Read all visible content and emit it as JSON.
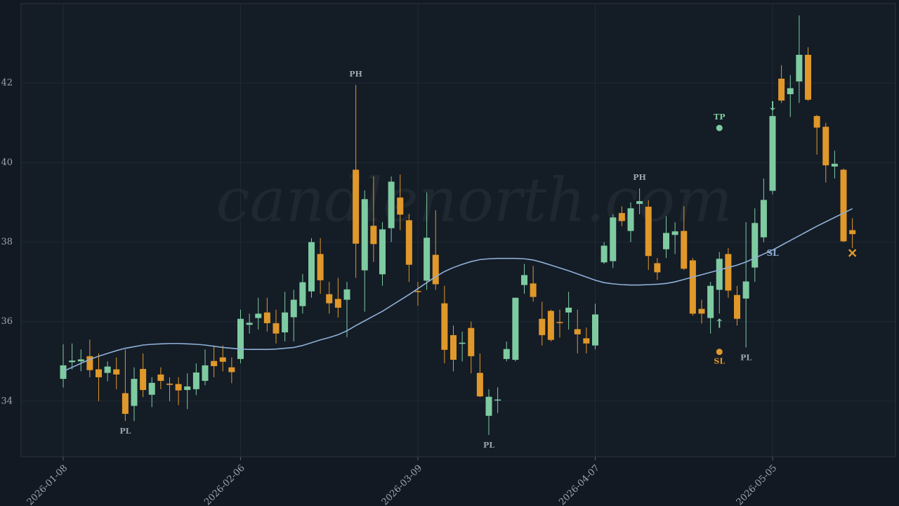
{
  "chart_data": {
    "type": "candlestick",
    "watermark": "candlenorth.com",
    "categories": [
      "2026-01-08",
      null,
      null,
      null,
      null,
      null,
      null,
      null,
      null,
      null,
      null,
      null,
      null,
      null,
      null,
      null,
      null,
      null,
      null,
      null,
      "2026-02-06",
      null,
      null,
      null,
      null,
      null,
      null,
      null,
      null,
      null,
      null,
      null,
      null,
      null,
      null,
      null,
      null,
      null,
      null,
      null,
      "2026-03-09",
      null,
      null,
      null,
      null,
      null,
      null,
      null,
      null,
      null,
      null,
      null,
      null,
      null,
      null,
      null,
      null,
      null,
      null,
      null,
      "2026-04-07",
      null,
      null,
      null,
      null,
      null,
      null,
      null,
      null,
      null,
      null,
      null,
      null,
      null,
      null,
      null,
      null,
      null,
      null,
      null,
      "2026-05-05",
      null,
      null,
      null,
      null,
      null,
      null,
      null,
      null,
      null
    ],
    "open": [
      34.56,
      34.98,
      35.0,
      35.13,
      34.8,
      34.71,
      34.8,
      34.2,
      33.88,
      34.81,
      34.16,
      34.67,
      34.44,
      34.43,
      34.28,
      34.3,
      34.51,
      35.01,
      35.1,
      34.85,
      35.06,
      35.92,
      36.09,
      36.23,
      35.96,
      35.73,
      36.11,
      36.39,
      36.76,
      37.7,
      36.69,
      36.57,
      36.55,
      39.82,
      37.29,
      38.41,
      37.19,
      38.35,
      39.12,
      38.55,
      36.77,
      37.03,
      37.68,
      36.46,
      35.66,
      35.44,
      35.84,
      34.71,
      33.63,
      34.02,
      35.06,
      35.04,
      36.92,
      36.96,
      36.07,
      36.27,
      35.99,
      36.23,
      35.81,
      35.58,
      35.4,
      37.49,
      37.52,
      38.73,
      38.28,
      38.96,
      38.89,
      37.47,
      37.82,
      38.18,
      38.28,
      37.54,
      36.32,
      36.09,
      36.8,
      37.7,
      36.67,
      36.58,
      37.36,
      38.12,
      39.29,
      42.11,
      41.72,
      42.04,
      42.71,
      41.17,
      40.9,
      39.9,
      39.82,
      38.3
    ],
    "high": [
      35.43,
      35.45,
      35.3,
      35.55,
      35.2,
      35.0,
      35.1,
      35.3,
      34.85,
      35.2,
      34.6,
      34.85,
      34.6,
      34.6,
      34.7,
      34.95,
      35.3,
      35.4,
      35.4,
      35.1,
      36.3,
      36.2,
      36.6,
      36.6,
      36.3,
      36.75,
      36.8,
      37.2,
      38.1,
      38.1,
      37.0,
      37.1,
      37.0,
      41.95,
      39.3,
      39.65,
      38.5,
      39.65,
      39.7,
      38.7,
      37.0,
      39.25,
      38.8,
      36.9,
      35.9,
      35.75,
      36.0,
      35.2,
      34.3,
      34.35,
      35.5,
      36.6,
      37.45,
      37.4,
      36.5,
      36.3,
      36.3,
      36.75,
      36.3,
      35.85,
      36.45,
      38.0,
      38.7,
      38.9,
      39.0,
      39.35,
      39.05,
      37.6,
      38.65,
      38.5,
      38.9,
      37.6,
      36.55,
      37.0,
      37.75,
      37.85,
      36.9,
      38.5,
      38.85,
      39.6,
      41.4,
      42.45,
      42.2,
      43.7,
      42.9,
      41.2,
      41.0,
      40.3,
      39.85,
      38.6
    ],
    "low": [
      34.34,
      34.8,
      34.75,
      34.6,
      34.0,
      34.5,
      34.3,
      33.5,
      33.5,
      34.1,
      33.85,
      34.3,
      34.0,
      33.9,
      33.8,
      34.15,
      34.4,
      34.6,
      34.75,
      34.45,
      34.95,
      35.7,
      35.8,
      35.75,
      35.45,
      35.5,
      35.5,
      36.2,
      36.6,
      36.7,
      36.2,
      36.1,
      35.61,
      37.1,
      36.25,
      37.5,
      36.9,
      38.0,
      38.3,
      37.0,
      36.4,
      36.8,
      36.8,
      34.95,
      34.75,
      35.0,
      34.7,
      34.1,
      33.15,
      33.7,
      35.0,
      35.0,
      36.7,
      36.5,
      35.4,
      35.5,
      35.6,
      35.8,
      35.2,
      35.2,
      35.3,
      37.45,
      37.35,
      38.4,
      38.0,
      38.7,
      37.3,
      37.05,
      37.6,
      37.7,
      37.3,
      36.15,
      35.95,
      35.7,
      36.2,
      36.6,
      35.9,
      35.35,
      37.0,
      38.0,
      39.2,
      41.5,
      41.15,
      41.5,
      41.55,
      40.2,
      39.5,
      39.6,
      38.0,
      37.85
    ],
    "close": [
      34.9,
      35.02,
      35.05,
      34.78,
      34.6,
      34.87,
      34.67,
      33.68,
      34.56,
      34.28,
      34.46,
      34.51,
      34.41,
      34.27,
      34.37,
      34.72,
      34.9,
      34.88,
      34.99,
      34.73,
      36.07,
      35.97,
      36.2,
      35.96,
      35.7,
      36.23,
      36.55,
      36.99,
      38.0,
      37.04,
      36.46,
      36.35,
      36.81,
      37.96,
      39.08,
      37.95,
      38.32,
      39.52,
      38.69,
      37.43,
      36.76,
      38.11,
      36.94,
      35.29,
      35.04,
      35.47,
      35.13,
      34.12,
      34.11,
      34.04,
      35.31,
      36.6,
      37.17,
      36.62,
      35.66,
      35.54,
      35.97,
      36.35,
      35.68,
      35.45,
      36.18,
      37.91,
      38.62,
      38.53,
      38.85,
      39.03,
      37.65,
      37.24,
      38.23,
      38.27,
      37.33,
      36.2,
      36.2,
      36.9,
      37.58,
      36.78,
      36.07,
      37.01,
      38.48,
      39.06,
      41.17,
      41.56,
      41.87,
      42.71,
      41.58,
      40.88,
      39.93,
      39.97,
      38.02,
      38.2
    ],
    "up_color": "#7ecba1",
    "down_color": "#e0982a",
    "moving_average": {
      "color": "#8fb0d8",
      "values": [
        34.75,
        34.85,
        34.95,
        35.05,
        35.13,
        35.2,
        35.27,
        35.33,
        35.37,
        35.41,
        35.43,
        35.44,
        35.45,
        35.45,
        35.44,
        35.43,
        35.41,
        35.38,
        35.35,
        35.33,
        35.31,
        35.3,
        35.3,
        35.3,
        35.31,
        35.33,
        35.35,
        35.4,
        35.47,
        35.54,
        35.6,
        35.67,
        35.77,
        35.9,
        36.02,
        36.14,
        36.26,
        36.4,
        36.54,
        36.68,
        36.83,
        36.98,
        37.13,
        37.26,
        37.36,
        37.44,
        37.51,
        37.56,
        37.58,
        37.59,
        37.59,
        37.59,
        37.58,
        37.55,
        37.49,
        37.42,
        37.35,
        37.28,
        37.2,
        37.12,
        37.04,
        36.98,
        36.95,
        36.93,
        36.92,
        36.92,
        36.93,
        36.94,
        36.96,
        37.0,
        37.06,
        37.12,
        37.18,
        37.24,
        37.3,
        37.36,
        37.42,
        37.5,
        37.6,
        37.7,
        37.8,
        37.92,
        38.04,
        38.16,
        38.28,
        38.4,
        38.51,
        38.62,
        38.73,
        38.84
      ]
    },
    "pivots": [
      {
        "label": "PL",
        "index": 7,
        "value": 33.5
      },
      {
        "label": "PH",
        "index": 33,
        "value": 41.95
      },
      {
        "label": "PL",
        "index": 48,
        "value": 33.15
      },
      {
        "label": "PH",
        "index": 65,
        "value": 39.35
      },
      {
        "label": "PL",
        "index": 77,
        "value": 35.35
      }
    ],
    "markers": [
      {
        "label": "TP",
        "index": 74,
        "value": 40.87,
        "color": "#7ecba1"
      },
      {
        "label": "SL",
        "index": 74,
        "value": 35.24,
        "color": "#e0982a"
      }
    ],
    "signals": [
      {
        "symbol": "↑",
        "index": 74,
        "value": 35.93,
        "color": "#7ecba1"
      },
      {
        "symbol": "↓",
        "index": 80,
        "value": 41.4,
        "color": "#7ecba1"
      },
      {
        "symbol": "✕",
        "index": 89,
        "value": 37.7,
        "color": "#e0982a"
      },
      {
        "symbol": "SL",
        "index": 80,
        "value": 37.72,
        "color": "#8fb0d8"
      }
    ],
    "ylim": [
      32.6,
      44.0
    ],
    "yticks": [
      34,
      36,
      38,
      40,
      42
    ],
    "grid": true
  }
}
